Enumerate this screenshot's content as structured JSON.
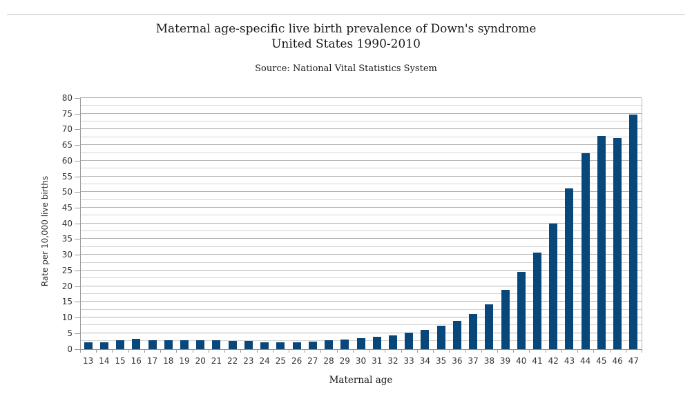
{
  "header": {
    "title_line1": "Maternal age-specific live birth prevalence of Down's syndrome",
    "title_line2": "United States 1990-2010",
    "source": "Source: National Vital Statistics System"
  },
  "chart_data": {
    "type": "bar",
    "title": "Maternal age-specific live birth prevalence of Down's syndrome United States 1990-2010",
    "subtitle": "Source: National Vital Statistics System",
    "xlabel": "Maternal age",
    "ylabel": "Rate per 10,000 live births",
    "ylim": [
      0,
      80
    ],
    "y_major_step": 5,
    "y_minor_step": 2.5,
    "grid": "horizontal-only",
    "legend": "none",
    "bar_color": "#09477a",
    "categories": [
      13,
      14,
      15,
      16,
      17,
      18,
      19,
      20,
      21,
      22,
      23,
      24,
      25,
      26,
      27,
      28,
      29,
      30,
      31,
      32,
      33,
      34,
      35,
      36,
      37,
      38,
      39,
      40,
      41,
      42,
      43,
      44,
      45,
      46,
      47
    ],
    "values": [
      2.1,
      2.0,
      2.8,
      3.1,
      2.7,
      2.8,
      2.7,
      2.8,
      2.7,
      2.5,
      2.5,
      2.2,
      2.2,
      2.2,
      2.4,
      2.8,
      3.0,
      3.4,
      3.9,
      4.4,
      5.1,
      6.1,
      7.3,
      9.0,
      11.2,
      14.1,
      18.9,
      24.5,
      30.7,
      40.0,
      51.1,
      62.3,
      68.0,
      67.2,
      74.7
    ]
  }
}
